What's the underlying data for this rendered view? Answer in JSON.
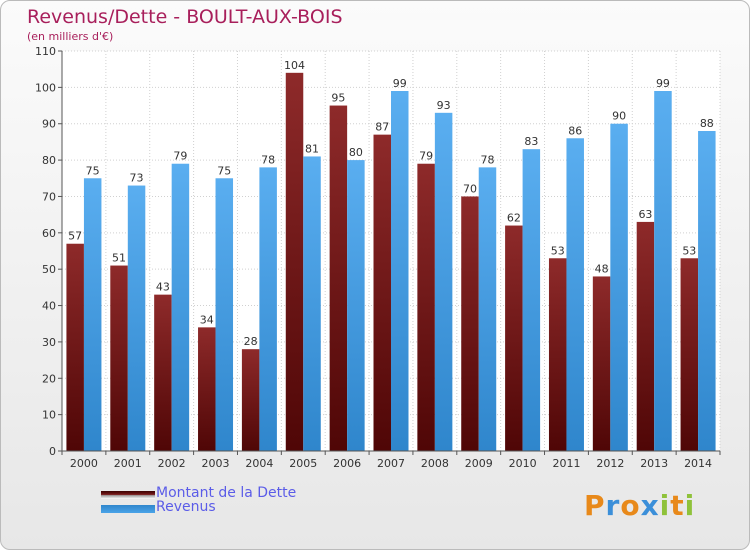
{
  "header": {
    "title": "Revenus/Dette - BOULT-AUX-BOIS",
    "subtitle": "(en milliers d'€)"
  },
  "legend": {
    "items": [
      {
        "label": "Montant de la Dette",
        "color": "#7a1a1a"
      },
      {
        "label": "Revenus",
        "color": "#4aa3e8"
      }
    ]
  },
  "brand": {
    "letters": [
      "P",
      "r",
      "o",
      "x",
      "i",
      "t",
      "i"
    ],
    "colors": [
      "#e8891a",
      "#3b8fd9",
      "#e8891a",
      "#3b8fd9",
      "#8fc23a",
      "#e8891a",
      "#8fc23a"
    ]
  },
  "chart_data": {
    "type": "bar",
    "title": "Revenus/Dette - BOULT-AUX-BOIS",
    "subtitle": "(en milliers d'€)",
    "xlabel": "",
    "ylabel": "",
    "ylim": [
      0,
      110
    ],
    "yticks": [
      0,
      10,
      20,
      30,
      40,
      50,
      60,
      70,
      80,
      90,
      100,
      110
    ],
    "grid": true,
    "legend_position": "bottom-left",
    "categories": [
      "2000",
      "2001",
      "2002",
      "2003",
      "2004",
      "2005",
      "2006",
      "2007",
      "2008",
      "2009",
      "2010",
      "2011",
      "2012",
      "2013",
      "2014"
    ],
    "series": [
      {
        "name": "Montant de la Dette",
        "color": "#7a1a1a",
        "values": [
          57,
          51,
          43,
          34,
          28,
          104,
          95,
          87,
          79,
          70,
          62,
          53,
          48,
          63,
          53
        ]
      },
      {
        "name": "Revenus",
        "color": "#4aa3e8",
        "values": [
          75,
          73,
          79,
          75,
          78,
          81,
          80,
          99,
          93,
          78,
          83,
          86,
          90,
          99,
          88
        ]
      }
    ]
  }
}
